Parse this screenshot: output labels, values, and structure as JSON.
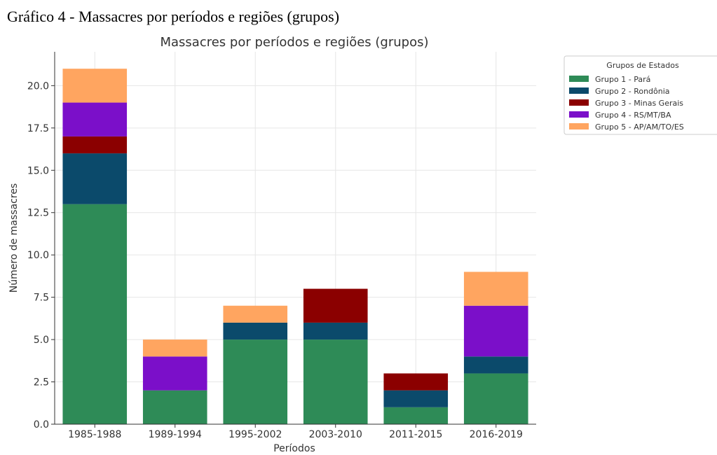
{
  "caption": "Gráfico 4 - Massacres por períodos e regiões (grupos)",
  "chart_data": {
    "type": "bar",
    "stacked": true,
    "title": "Massacres por períodos e regiões (grupos)",
    "xlabel": "Períodos",
    "ylabel": "Número de massacres",
    "categories": [
      "1985-1988",
      "1989-1994",
      "1995-2002",
      "2003-2010",
      "2011-2015",
      "2016-2019"
    ],
    "ylim": [
      0,
      22
    ],
    "yticks": [
      "0.0",
      "2.5",
      "5.0",
      "7.5",
      "10.0",
      "12.5",
      "15.0",
      "17.5",
      "20.0"
    ],
    "grid": true,
    "legend_title": "Grupos de Estados",
    "legend_position": "outside-top-right",
    "series": [
      {
        "name": "Grupo 1 - Pará",
        "color": "#2e8b57",
        "values": [
          13,
          2,
          5,
          5,
          1,
          3
        ]
      },
      {
        "name": "Grupo 2 - Rondônia",
        "color": "#0b4a6b",
        "values": [
          3,
          0,
          1,
          1,
          1,
          1
        ]
      },
      {
        "name": "Grupo 3 - Minas Gerais",
        "color": "#8b0000",
        "values": [
          1,
          0,
          0,
          2,
          1,
          0
        ]
      },
      {
        "name": "Grupo 4 - RS/MT/BA",
        "color": "#7b0fc9",
        "values": [
          2,
          2,
          0,
          0,
          0,
          3
        ]
      },
      {
        "name": "Grupo 5 - AP/AM/TO/ES",
        "color": "#ffa560",
        "values": [
          2,
          1,
          1,
          0,
          0,
          2
        ]
      }
    ]
  }
}
